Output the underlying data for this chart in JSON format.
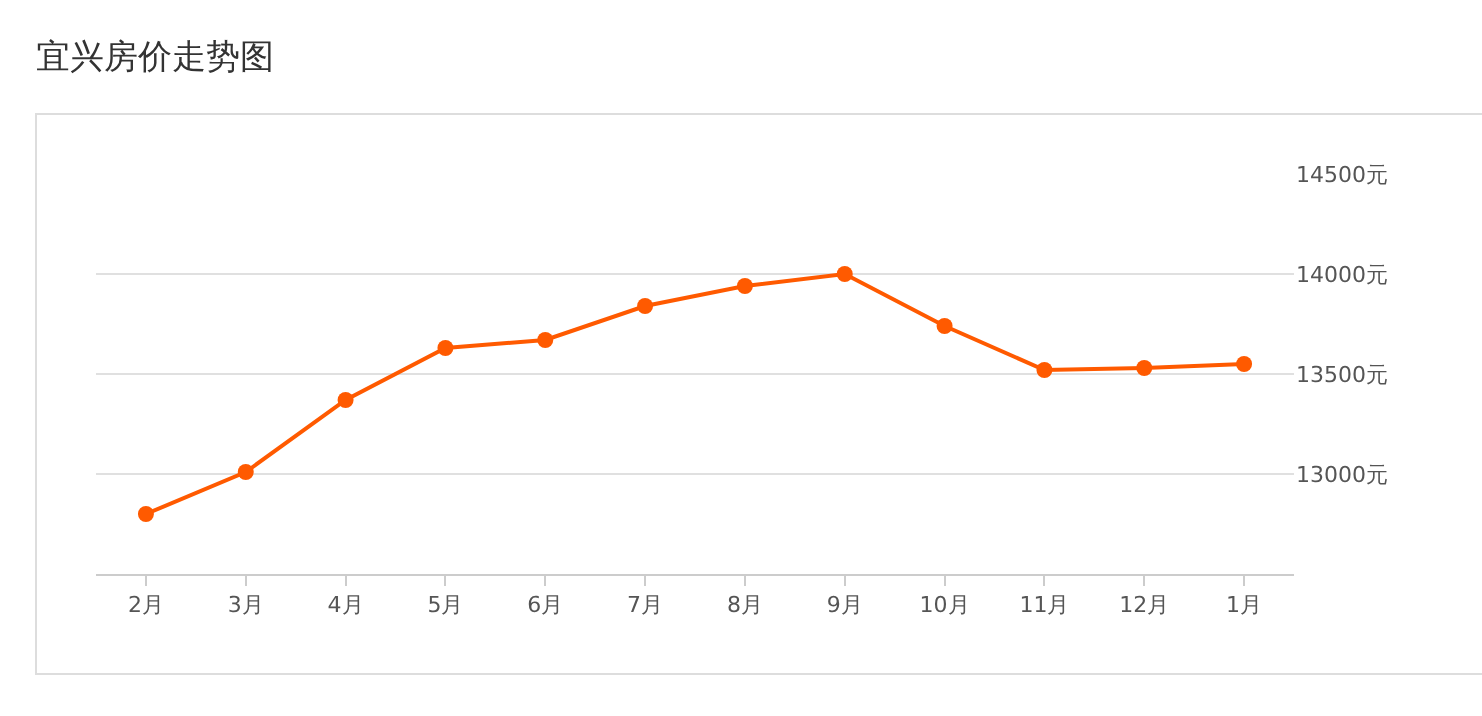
{
  "chart_data": {
    "type": "line",
    "title": "宜兴房价走势图",
    "categories": [
      "2月",
      "3月",
      "4月",
      "5月",
      "6月",
      "7月",
      "8月",
      "9月",
      "10月",
      "11月",
      "12月",
      "1月"
    ],
    "series": [
      {
        "color": "#ff5a00",
        "values": [
          12800,
          13010,
          13370,
          13630,
          13670,
          13840,
          13940,
          14000,
          13740,
          13520,
          13530,
          13550
        ]
      }
    ],
    "ylim": [
      12500,
      14500
    ],
    "yticks": [
      {
        "value": 13000,
        "label": "13000元"
      },
      {
        "value": 13500,
        "label": "13500元"
      },
      {
        "value": 14000,
        "label": "14000元"
      },
      {
        "value": 14500,
        "label": "14500元"
      }
    ],
    "grid": "y",
    "marker": "circle",
    "line_style": "solid"
  }
}
